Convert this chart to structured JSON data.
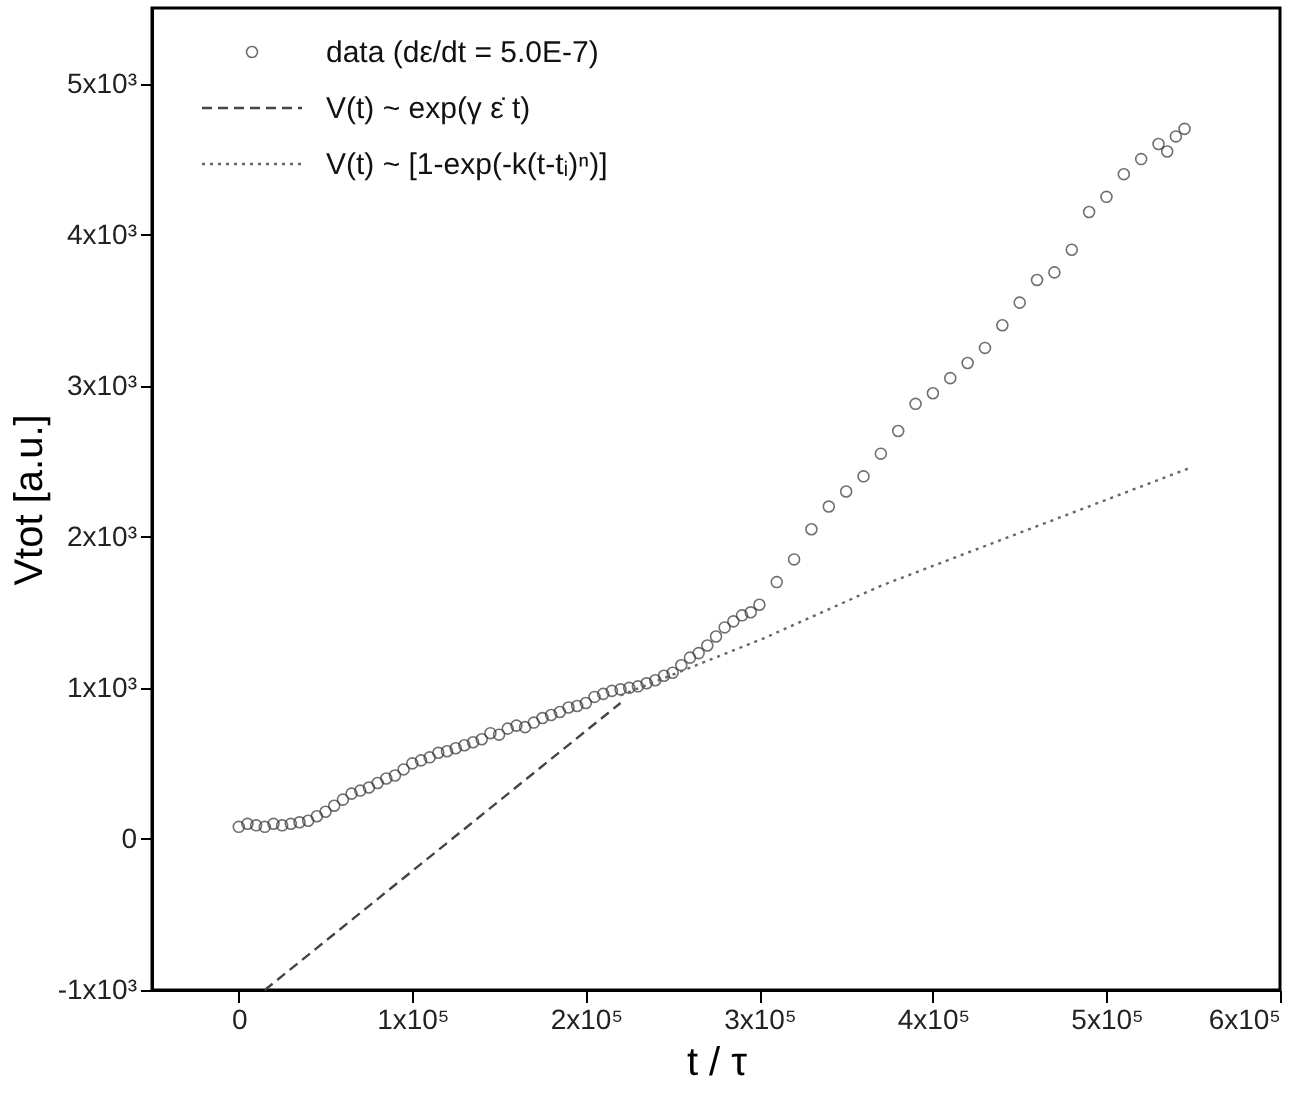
{
  "chart_data": {
    "type": "scatter",
    "xlabel": "t / τ",
    "ylabel": "Vtot [a.u.]",
    "xlim": [
      -50000,
      600000
    ],
    "ylim": [
      -1000,
      5500
    ],
    "xticks": [
      0,
      {
        "value": 100000,
        "label": "1x10⁵"
      },
      {
        "value": 200000,
        "label": "2x10⁵"
      },
      {
        "value": 300000,
        "label": "3x10⁵"
      },
      {
        "value": 400000,
        "label": "4x10⁵"
      },
      {
        "value": 500000,
        "label": "5x10⁵"
      },
      {
        "value": 600000,
        "label": "6x10⁵"
      }
    ],
    "yticks": [
      {
        "value": -1000,
        "label": "-1x10³"
      },
      0,
      {
        "value": 1000,
        "label": "1x10³"
      },
      {
        "value": 2000,
        "label": "2x10³"
      },
      {
        "value": 3000,
        "label": "3x10³"
      },
      {
        "value": 4000,
        "label": "4x10³"
      },
      {
        "value": 5000,
        "label": "5x10³"
      }
    ],
    "grid": false,
    "legend": "top left",
    "series": [
      {
        "name": "data (dε/dt = 5.0E-7)",
        "marker": "circle",
        "color": "#333333",
        "x": [
          0,
          5000,
          10000,
          15000,
          20000,
          25000,
          30000,
          35000,
          40000,
          45000,
          50000,
          55000,
          60000,
          65000,
          70000,
          75000,
          80000,
          85000,
          90000,
          95000,
          100000,
          105000,
          110000,
          115000,
          120000,
          125000,
          130000,
          135000,
          140000,
          145000,
          150000,
          155000,
          160000,
          165000,
          170000,
          175000,
          180000,
          185000,
          190000,
          195000,
          200000,
          205000,
          210000,
          215000,
          220000,
          225000,
          230000,
          235000,
          240000,
          245000,
          250000,
          255000,
          260000,
          265000,
          270000,
          275000,
          280000,
          285000,
          290000,
          295000,
          300000,
          310000,
          320000,
          330000,
          340000,
          350000,
          360000,
          370000,
          380000,
          390000,
          400000,
          410000,
          420000,
          430000,
          440000,
          450000,
          460000,
          470000,
          480000,
          490000,
          500000,
          510000,
          520000,
          530000,
          535000,
          540000,
          545000
        ],
        "values": [
          80,
          100,
          90,
          80,
          100,
          90,
          100,
          110,
          120,
          150,
          180,
          220,
          260,
          300,
          320,
          340,
          370,
          400,
          420,
          460,
          500,
          520,
          540,
          570,
          580,
          600,
          620,
          640,
          660,
          700,
          690,
          730,
          750,
          740,
          770,
          800,
          820,
          840,
          870,
          880,
          900,
          940,
          960,
          980,
          990,
          1000,
          1010,
          1030,
          1050,
          1080,
          1100,
          1150,
          1200,
          1230,
          1280,
          1340,
          1400,
          1440,
          1480,
          1500,
          1550,
          1700,
          1850,
          2050,
          2200,
          2300,
          2400,
          2550,
          2700,
          2880,
          2950,
          3050,
          3150,
          3250,
          3400,
          3550,
          3700,
          3750,
          3900,
          4150,
          4250,
          4400,
          4500,
          4600,
          4550,
          4650,
          4700
        ]
      },
      {
        "name": "V(t) ~ exp(γ ε̇ t)",
        "type": "line",
        "line_style": "dashed",
        "color": "#444444",
        "x": [
          15000,
          220000
        ],
        "values": [
          -1000,
          900
        ]
      },
      {
        "name": "V(t) ~ [1-exp(-k(t-tᵢ)ⁿ)]",
        "type": "line",
        "line_style": "dotted",
        "color": "#666666",
        "x": [
          220000,
          303000,
          371000,
          549000
        ],
        "values": [
          950,
          1330,
          1680,
          2460
        ]
      }
    ]
  }
}
